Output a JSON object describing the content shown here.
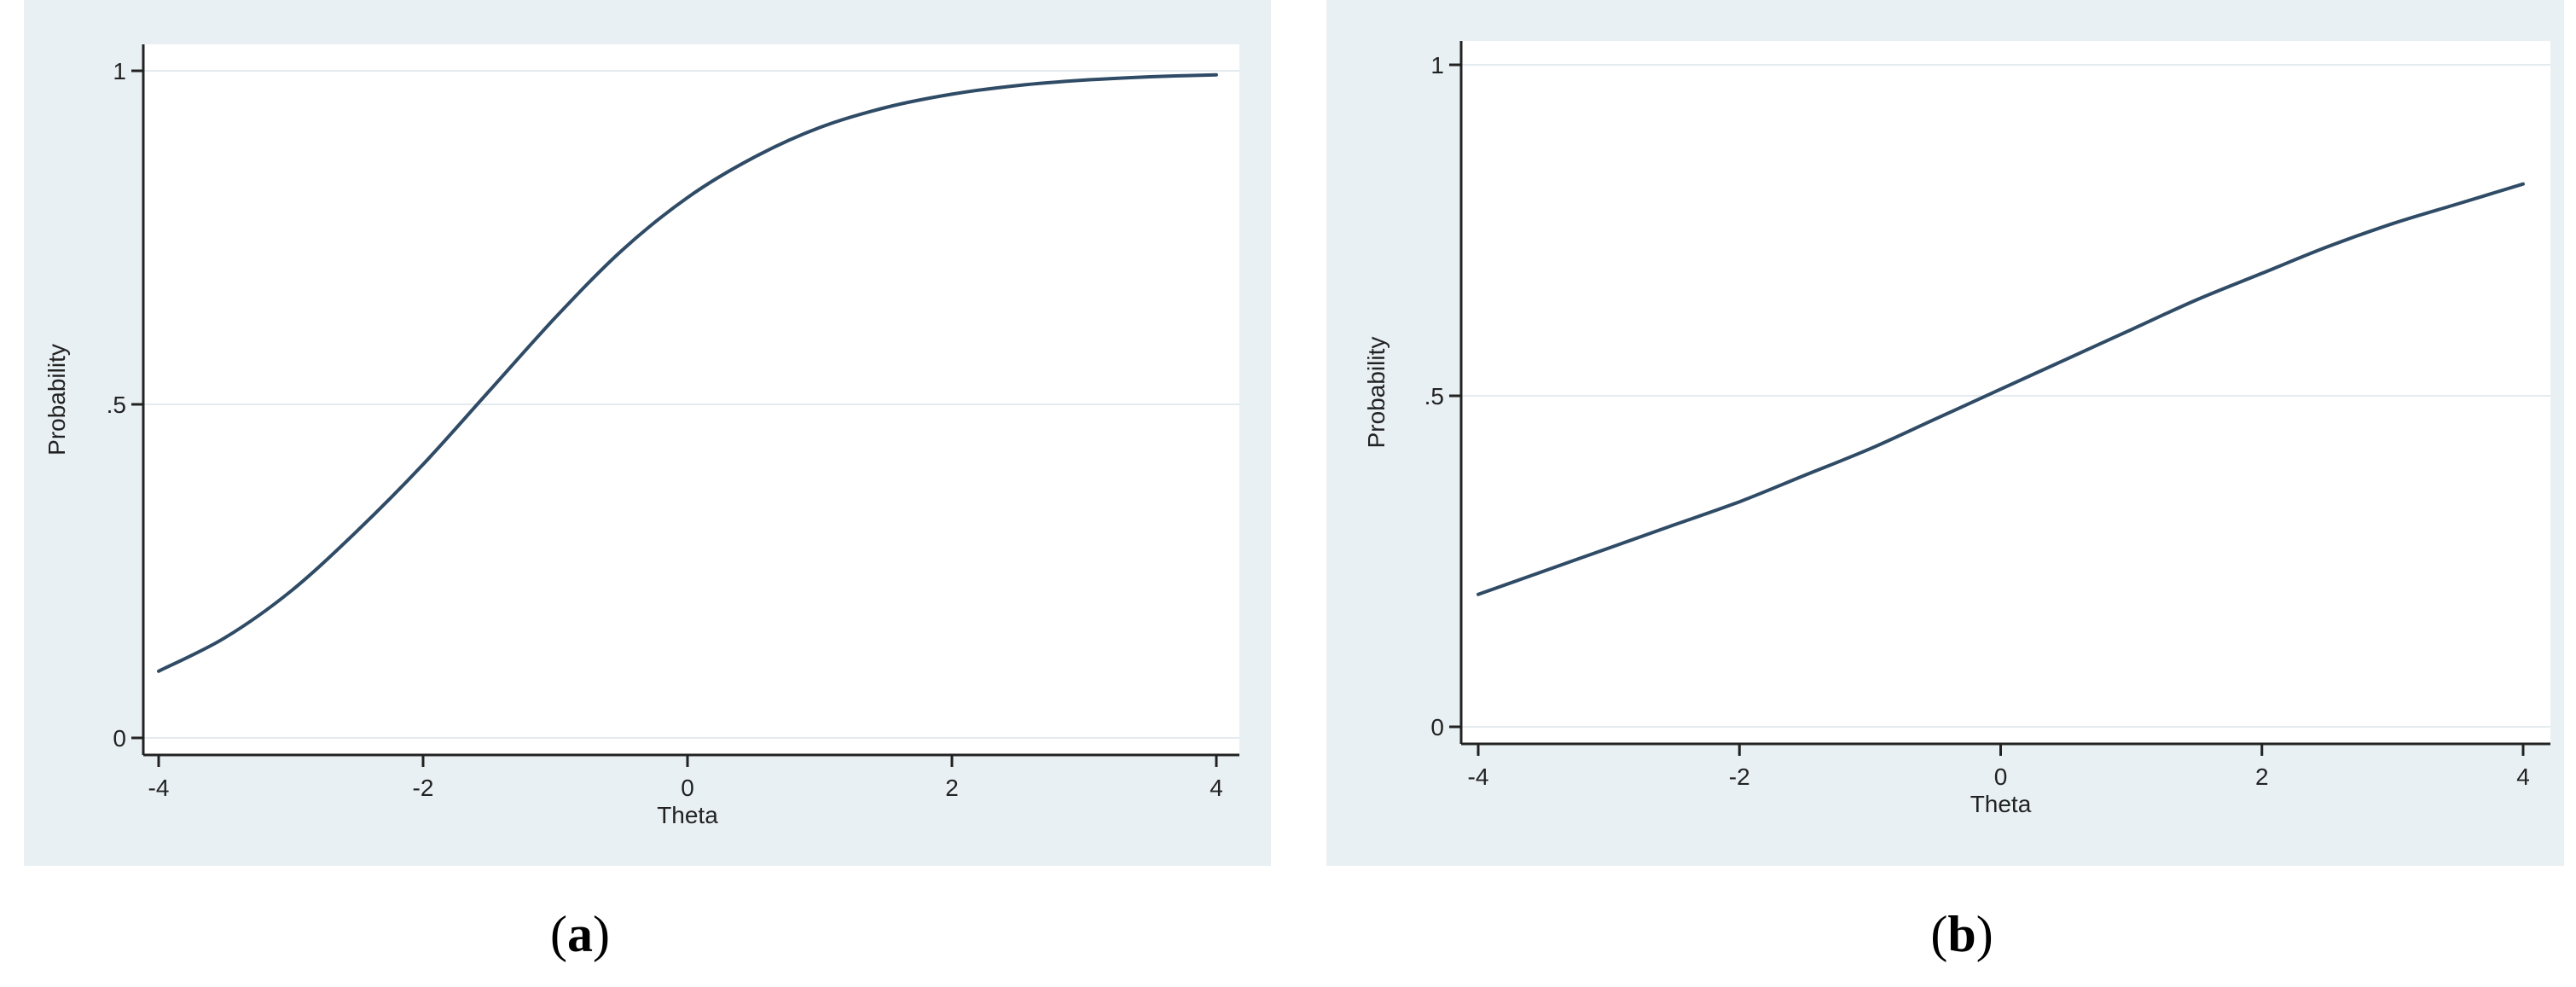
{
  "chart_data": [
    {
      "type": "line",
      "panel": "a",
      "caption_letter": "a",
      "xlabel": "Theta",
      "ylabel": "Probability",
      "xlim": [
        -4,
        4
      ],
      "ylim": [
        0,
        1
      ],
      "x_ticks": [
        -4,
        -2,
        0,
        2,
        4
      ],
      "x_tick_labels": [
        "-4",
        "-2",
        "0",
        "2",
        "4"
      ],
      "y_ticks": [
        0,
        0.5,
        1
      ],
      "y_tick_labels": [
        "0",
        ".5",
        "1"
      ],
      "grid": "horizontal",
      "line_color": "#2f4b66",
      "x": [
        -4,
        -3.5,
        -3,
        -2.5,
        -2,
        -1.5,
        -1,
        -0.5,
        0,
        0.5,
        1,
        1.5,
        2,
        2.5,
        3,
        3.5,
        4
      ],
      "y": [
        0.1,
        0.15,
        0.22,
        0.31,
        0.41,
        0.52,
        0.63,
        0.73,
        0.81,
        0.87,
        0.915,
        0.945,
        0.965,
        0.978,
        0.986,
        0.991,
        0.994
      ]
    },
    {
      "type": "line",
      "panel": "b",
      "caption_letter": "b",
      "xlabel": "Theta",
      "ylabel": "Probability",
      "xlim": [
        -4,
        4
      ],
      "ylim": [
        0,
        1
      ],
      "x_ticks": [
        -4,
        -2,
        0,
        2,
        4
      ],
      "x_tick_labels": [
        "-4",
        "-2",
        "0",
        "2",
        "4"
      ],
      "y_ticks": [
        0,
        0.5,
        1
      ],
      "y_tick_labels": [
        "0",
        ".5",
        "1"
      ],
      "grid": "horizontal",
      "line_color": "#2f4b66",
      "x": [
        -4,
        -3.5,
        -3,
        -2.5,
        -2,
        -1.5,
        -1,
        -0.5,
        0,
        0.5,
        1,
        1.5,
        2,
        2.5,
        3,
        3.5,
        4
      ],
      "y": [
        0.2,
        0.235,
        0.27,
        0.305,
        0.34,
        0.38,
        0.42,
        0.465,
        0.51,
        0.555,
        0.6,
        0.645,
        0.685,
        0.725,
        0.76,
        0.79,
        0.82
      ]
    }
  ]
}
